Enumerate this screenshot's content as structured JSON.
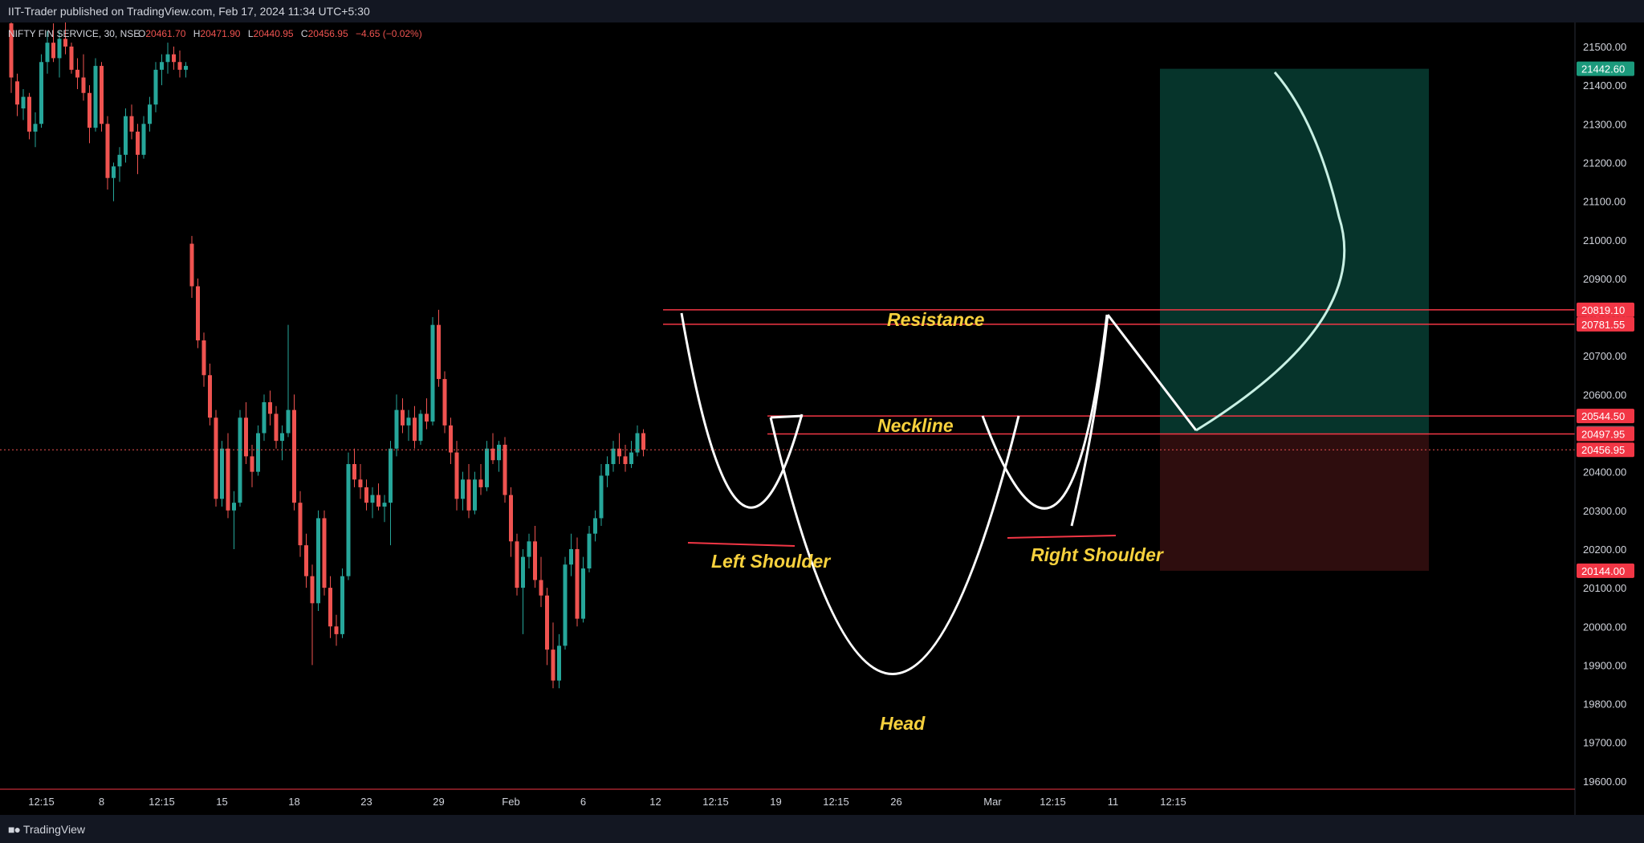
{
  "header": {
    "published_text": "IIT-Trader published on TradingView.com, Feb 17, 2024 11:34 UTC+5:30"
  },
  "footer": {
    "brand": "TradingView"
  },
  "legend": {
    "symbol": "NIFTY FIN SERVICE, 30, NSE",
    "open_label": "O",
    "open_value": "20461.70",
    "high_label": "H",
    "high_value": "20471.90",
    "low_label": "L",
    "low_value": "20440.95",
    "close_label": "C",
    "close_value": "20456.95",
    "change": "−4.65 (−0.02%)"
  },
  "colors": {
    "background": "#000000",
    "up": "#26a69a",
    "down": "#ef5350",
    "line_red": "#f23645",
    "annotation_yellow": "#f7d13d",
    "target_zone": "#06342b",
    "stop_zone": "#2e0d0e",
    "axis_text": "#d1d4dc",
    "target_badge": "#1b9a7c"
  },
  "chart_data": {
    "type": "candlestick",
    "title": "NIFTY FIN SERVICE, 30, NSE",
    "ylim": [
      19550,
      21590
    ],
    "y_ticks": [
      19600,
      19700,
      19800,
      19900,
      20000,
      20100,
      20200,
      20300,
      20400,
      20500,
      20600,
      20700,
      20800,
      20900,
      21000,
      21100,
      21200,
      21300,
      21400,
      21500
    ],
    "y_tick_labels": [
      "19600.00",
      "19700.00",
      "19800.00",
      "19900.00",
      "20000.00",
      "20100.00",
      "20200.00",
      "20300.00",
      "20400.00",
      "20500.00",
      "20600.00",
      "20700.00",
      "20800.00",
      "20900.00",
      "21000.00",
      "21100.00",
      "21200.00",
      "21300.00",
      "21400.00",
      "21500.00"
    ],
    "x_ticks": [
      {
        "label": "12:15",
        "i": 5
      },
      {
        "label": "8",
        "i": 15
      },
      {
        "label": "12:15",
        "i": 25
      },
      {
        "label": "15",
        "i": 35
      },
      {
        "label": "18",
        "i": 47
      },
      {
        "label": "23",
        "i": 59
      },
      {
        "label": "29",
        "i": 71
      },
      {
        "label": "Feb",
        "i": 83
      },
      {
        "label": "6",
        "i": 95
      },
      {
        "label": "12",
        "i": 107
      },
      {
        "label": "12:15",
        "i": 117
      },
      {
        "label": "19",
        "i": 127
      },
      {
        "label": "12:15",
        "i": 137
      },
      {
        "label": "26",
        "i": 147
      },
      {
        "label": "Mar",
        "i": 163
      },
      {
        "label": "12:15",
        "i": 173
      },
      {
        "label": "11",
        "i": 183
      },
      {
        "label": "12:15",
        "i": 193
      }
    ],
    "candles": [
      [
        21560,
        21580,
        21380,
        21420
      ],
      [
        21410,
        21430,
        21320,
        21350
      ],
      [
        21340,
        21390,
        21310,
        21370
      ],
      [
        21370,
        21380,
        21260,
        21280
      ],
      [
        21280,
        21330,
        21240,
        21300
      ],
      [
        21300,
        21480,
        21290,
        21460
      ],
      [
        21460,
        21540,
        21430,
        21510
      ],
      [
        21510,
        21560,
        21460,
        21470
      ],
      [
        21470,
        21540,
        21420,
        21520
      ],
      [
        21520,
        21580,
        21480,
        21500
      ],
      [
        21500,
        21510,
        21430,
        21440
      ],
      [
        21440,
        21470,
        21390,
        21420
      ],
      [
        21420,
        21480,
        21360,
        21380
      ],
      [
        21380,
        21400,
        21250,
        21290
      ],
      [
        21290,
        21470,
        21280,
        21450
      ],
      [
        21450,
        21460,
        21280,
        21300
      ],
      [
        21300,
        21320,
        21130,
        21160
      ],
      [
        21160,
        21200,
        21100,
        21190
      ],
      [
        21190,
        21240,
        21150,
        21220
      ],
      [
        21220,
        21340,
        21200,
        21320
      ],
      [
        21320,
        21350,
        21260,
        21280
      ],
      [
        21280,
        21300,
        21170,
        21220
      ],
      [
        21220,
        21320,
        21210,
        21300
      ],
      [
        21300,
        21370,
        21280,
        21350
      ],
      [
        21350,
        21460,
        21330,
        21440
      ],
      [
        21440,
        21480,
        21400,
        21460
      ],
      [
        21460,
        21510,
        21430,
        21480
      ],
      [
        21480,
        21500,
        21440,
        21460
      ],
      [
        21460,
        21490,
        21420,
        21440
      ],
      [
        21440,
        21460,
        21420,
        21450
      ],
      [
        20990,
        21010,
        20850,
        20880
      ],
      [
        20880,
        20900,
        20720,
        20740
      ],
      [
        20740,
        20760,
        20620,
        20650
      ],
      [
        20650,
        20680,
        20520,
        20540
      ],
      [
        20540,
        20560,
        20310,
        20330
      ],
      [
        20330,
        20480,
        20310,
        20460
      ],
      [
        20460,
        20500,
        20280,
        20300
      ],
      [
        20300,
        20350,
        20200,
        20320
      ],
      [
        20320,
        20560,
        20310,
        20540
      ],
      [
        20540,
        20580,
        20420,
        20440
      ],
      [
        20440,
        20470,
        20360,
        20400
      ],
      [
        20400,
        20520,
        20390,
        20500
      ],
      [
        20500,
        20600,
        20480,
        20580
      ],
      [
        20580,
        20610,
        20520,
        20550
      ],
      [
        20550,
        20570,
        20460,
        20480
      ],
      [
        20480,
        20520,
        20430,
        20500
      ],
      [
        20500,
        20780,
        20490,
        20560
      ],
      [
        20560,
        20600,
        20300,
        20320
      ],
      [
        20320,
        20350,
        20180,
        20210
      ],
      [
        20210,
        20240,
        20100,
        20130
      ],
      [
        20130,
        20160,
        19900,
        20060
      ],
      [
        20060,
        20300,
        20040,
        20280
      ],
      [
        20280,
        20300,
        20080,
        20100
      ],
      [
        20100,
        20130,
        19970,
        20000
      ],
      [
        20000,
        20030,
        19950,
        19980
      ],
      [
        19980,
        20150,
        19970,
        20130
      ],
      [
        20130,
        20450,
        20120,
        20420
      ],
      [
        20420,
        20460,
        20360,
        20380
      ],
      [
        20380,
        20420,
        20330,
        20360
      ],
      [
        20360,
        20380,
        20300,
        20320
      ],
      [
        20320,
        20360,
        20280,
        20340
      ],
      [
        20340,
        20370,
        20300,
        20310
      ],
      [
        20310,
        20340,
        20270,
        20320
      ],
      [
        20320,
        20480,
        20210,
        20460
      ],
      [
        20460,
        20600,
        20440,
        20560
      ],
      [
        20560,
        20590,
        20500,
        20520
      ],
      [
        20520,
        20560,
        20480,
        20540
      ],
      [
        20540,
        20570,
        20460,
        20480
      ],
      [
        20480,
        20560,
        20470,
        20550
      ],
      [
        20550,
        20590,
        20510,
        20530
      ],
      [
        20530,
        20800,
        20520,
        20780
      ],
      [
        20780,
        20819,
        20620,
        20640
      ],
      [
        20640,
        20660,
        20500,
        20520
      ],
      [
        20520,
        20540,
        20420,
        20450
      ],
      [
        20450,
        20480,
        20300,
        20330
      ],
      [
        20330,
        20400,
        20300,
        20380
      ],
      [
        20380,
        20420,
        20280,
        20300
      ],
      [
        20300,
        20400,
        20290,
        20380
      ],
      [
        20380,
        20420,
        20340,
        20360
      ],
      [
        20360,
        20480,
        20350,
        20460
      ],
      [
        20460,
        20500,
        20420,
        20430
      ],
      [
        20430,
        20480,
        20400,
        20470
      ],
      [
        20470,
        20490,
        20320,
        20340
      ],
      [
        20340,
        20360,
        20180,
        20220
      ],
      [
        20220,
        20240,
        20080,
        20100
      ],
      [
        20100,
        20200,
        19980,
        20180
      ],
      [
        20180,
        20240,
        20150,
        20220
      ],
      [
        20220,
        20260,
        20100,
        20120
      ],
      [
        20120,
        20180,
        20050,
        20080
      ],
      [
        20080,
        20100,
        19900,
        19940
      ],
      [
        19940,
        20010,
        19840,
        19860
      ],
      [
        19860,
        19980,
        19840,
        19950
      ],
      [
        19950,
        20180,
        19940,
        20160
      ],
      [
        20160,
        20240,
        20130,
        20200
      ],
      [
        20200,
        20230,
        20000,
        20020
      ],
      [
        20020,
        20180,
        20010,
        20150
      ],
      [
        20150,
        20260,
        20140,
        20240
      ],
      [
        20240,
        20300,
        20220,
        20280
      ],
      [
        20280,
        20420,
        20260,
        20390
      ],
      [
        20390,
        20440,
        20360,
        20420
      ],
      [
        20420,
        20480,
        20400,
        20460
      ],
      [
        20460,
        20500,
        20420,
        20440
      ],
      [
        20440,
        20470,
        20400,
        20420
      ],
      [
        20420,
        20480,
        20410,
        20450
      ],
      [
        20450,
        20520,
        20440,
        20500
      ],
      [
        20500,
        20510,
        20440,
        20457
      ]
    ],
    "horizontal_levels": [
      {
        "price": 20819.1,
        "label": "20819.10"
      },
      {
        "price": 20781.55,
        "label": "20781.55"
      },
      {
        "price": 20544.5,
        "label": "20544.50"
      },
      {
        "price": 20497.95,
        "label": "20497.95"
      }
    ],
    "last_price": {
      "price": 20456.95,
      "label": "20456.95"
    },
    "crosshair_price": {
      "price": 20500.0,
      "label": "20500.00"
    },
    "target": {
      "price": 21442.6,
      "label": "21442.60"
    },
    "stop": {
      "price": 20144.0,
      "label": "20144.00"
    },
    "partial_tick_label": "20600.00",
    "annotations": {
      "resistance": "Resistance",
      "neckline": "Neckline",
      "left_shoulder": "Left Shoulder",
      "head": "Head",
      "right_shoulder": "Right Shoulder"
    }
  }
}
